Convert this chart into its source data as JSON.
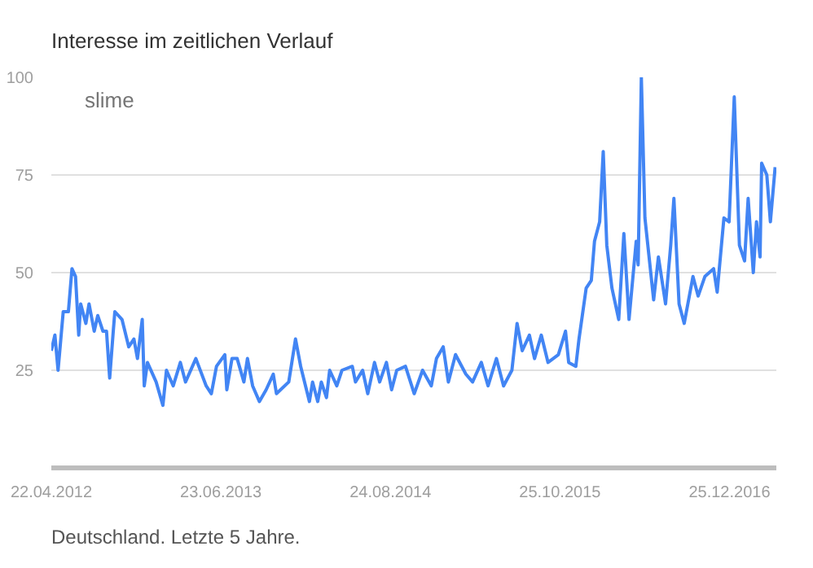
{
  "chart_data": {
    "type": "line",
    "title": "Interesse im zeitlichen Verlauf",
    "annotations": [
      "Deutschland. Letzte 5 Jahre."
    ],
    "legend": "top left",
    "grid": "y",
    "ylim": [
      0,
      100
    ],
    "yticks": [
      25,
      50,
      75,
      100
    ],
    "xlim": [
      "2012-04-22",
      "2017-04-22"
    ],
    "xticks": [
      {
        "value": "2012-04-22",
        "label": "22.04.2012"
      },
      {
        "value": "2013-06-23",
        "label": "23.06.2013"
      },
      {
        "value": "2014-08-24",
        "label": "24.08.2014"
      },
      {
        "value": "2015-10-25",
        "label": "25.10.2015"
      },
      {
        "value": "2016-12-25",
        "label": "25.12.2016"
      }
    ],
    "series": [
      {
        "name": "slime",
        "color": "#4285f4",
        "x": [
          "2012-04-22",
          "2012-05-01",
          "2012-05-09",
          "2012-05-22",
          "2012-06-04",
          "2012-06-13",
          "2012-06-22",
          "2012-06-30",
          "2012-07-05",
          "2012-07-18",
          "2012-07-26",
          "2012-08-08",
          "2012-08-17",
          "2012-08-30",
          "2012-09-08",
          "2012-09-16",
          "2012-09-25",
          "2012-09-29",
          "2012-10-17",
          "2012-11-03",
          "2012-11-16",
          "2012-11-25",
          "2012-12-07",
          "2012-12-12",
          "2012-12-20",
          "2013-01-11",
          "2013-01-28",
          "2013-02-06",
          "2013-02-23",
          "2013-03-13",
          "2013-03-26",
          "2013-04-21",
          "2013-05-17",
          "2013-05-30",
          "2013-06-12",
          "2013-07-03",
          "2013-07-08",
          "2013-07-21",
          "2013-08-03",
          "2013-08-20",
          "2013-08-29",
          "2013-09-11",
          "2013-09-28",
          "2013-10-15",
          "2013-11-02",
          "2013-11-10",
          "2013-12-11",
          "2013-12-28",
          "2014-01-10",
          "2014-02-01",
          "2014-02-09",
          "2014-02-22",
          "2014-03-03",
          "2014-03-16",
          "2014-03-24",
          "2014-04-11",
          "2014-04-24",
          "2014-05-20",
          "2014-05-28",
          "2014-06-15",
          "2014-06-28",
          "2014-07-15",
          "2014-07-28",
          "2014-08-14",
          "2014-08-27",
          "2014-09-09",
          "2014-10-01",
          "2014-10-23",
          "2014-11-13",
          "2014-12-05",
          "2014-12-18",
          "2015-01-04",
          "2015-01-17",
          "2015-02-04",
          "2015-03-02",
          "2015-03-19",
          "2015-04-10",
          "2015-04-27",
          "2015-05-18",
          "2015-06-05",
          "2015-06-26",
          "2015-07-09",
          "2015-07-22",
          "2015-08-09",
          "2015-08-22",
          "2015-09-08",
          "2015-09-25",
          "2015-10-21",
          "2015-11-08",
          "2015-11-16",
          "2015-12-04",
          "2015-12-12",
          "2015-12-30",
          "2016-01-12",
          "2016-01-20",
          "2016-02-02",
          "2016-02-11",
          "2016-02-20",
          "2016-03-04",
          "2016-03-21",
          "2016-04-03",
          "2016-04-16",
          "2016-05-04",
          "2016-05-09",
          "2016-05-17",
          "2016-05-26",
          "2016-06-17",
          "2016-06-29",
          "2016-07-17",
          "2016-07-30",
          "2016-08-07",
          "2016-08-20",
          "2016-09-02",
          "2016-09-24",
          "2016-10-07",
          "2016-10-24",
          "2016-11-15",
          "2016-11-24",
          "2016-12-11",
          "2016-12-24",
          "2017-01-06",
          "2017-01-19",
          "2017-02-01",
          "2017-02-10",
          "2017-02-23",
          "2017-03-03",
          "2017-03-12",
          "2017-03-16",
          "2017-03-29",
          "2017-04-07",
          "2017-04-19"
        ],
        "values": [
          30,
          34,
          25,
          40,
          40,
          51,
          49,
          34,
          42,
          37,
          42,
          35,
          39,
          35,
          35,
          23,
          35,
          40,
          38,
          31,
          33,
          28,
          38,
          21,
          27,
          22,
          16,
          25,
          21,
          27,
          22,
          28,
          21,
          19,
          26,
          29,
          20,
          28,
          28,
          22,
          28,
          21,
          17,
          20,
          24,
          19,
          22,
          33,
          26,
          17,
          22,
          17,
          22,
          18,
          25,
          21,
          25,
          26,
          22,
          25,
          19,
          27,
          22,
          27,
          20,
          25,
          26,
          19,
          25,
          21,
          28,
          31,
          22,
          29,
          24,
          22,
          27,
          21,
          28,
          21,
          25,
          37,
          30,
          34,
          28,
          34,
          27,
          29,
          35,
          27,
          26,
          33,
          46,
          48,
          58,
          63,
          81,
          57,
          46,
          38,
          60,
          38,
          58,
          52,
          100,
          64,
          43,
          54,
          42,
          57,
          69,
          42,
          37,
          49,
          44,
          49,
          51,
          45,
          64,
          63,
          95,
          57,
          53,
          69,
          50,
          63,
          54,
          78,
          75,
          63,
          77
        ]
      }
    ]
  }
}
